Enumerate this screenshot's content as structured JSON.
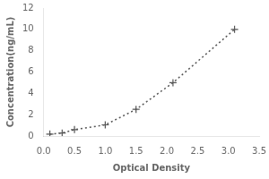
{
  "chart_data": {
    "type": "line",
    "x": [
      0.1,
      0.3,
      0.5,
      1.0,
      1.5,
      2.1,
      3.1
    ],
    "values": [
      0.18,
      0.28,
      0.6,
      1.05,
      2.5,
      5.0,
      10.0
    ],
    "xlabel": "Optical Density",
    "ylabel": "Concentration(ng/mL)",
    "xlim": [
      0,
      3.5
    ],
    "ylim": [
      0,
      12
    ],
    "xticks": [
      {
        "value": 0,
        "label": "0.0"
      },
      0.5,
      {
        "value": 1,
        "label": "1.0"
      },
      1.5,
      {
        "value": 2,
        "label": "2.0"
      },
      2.5,
      {
        "value": 3,
        "label": "3.0"
      },
      3.5
    ],
    "yticks": [
      0,
      2,
      4,
      6,
      8,
      10,
      12
    ],
    "color": "#555555",
    "marker": "+",
    "line_style": "dotted",
    "grid": false
  }
}
